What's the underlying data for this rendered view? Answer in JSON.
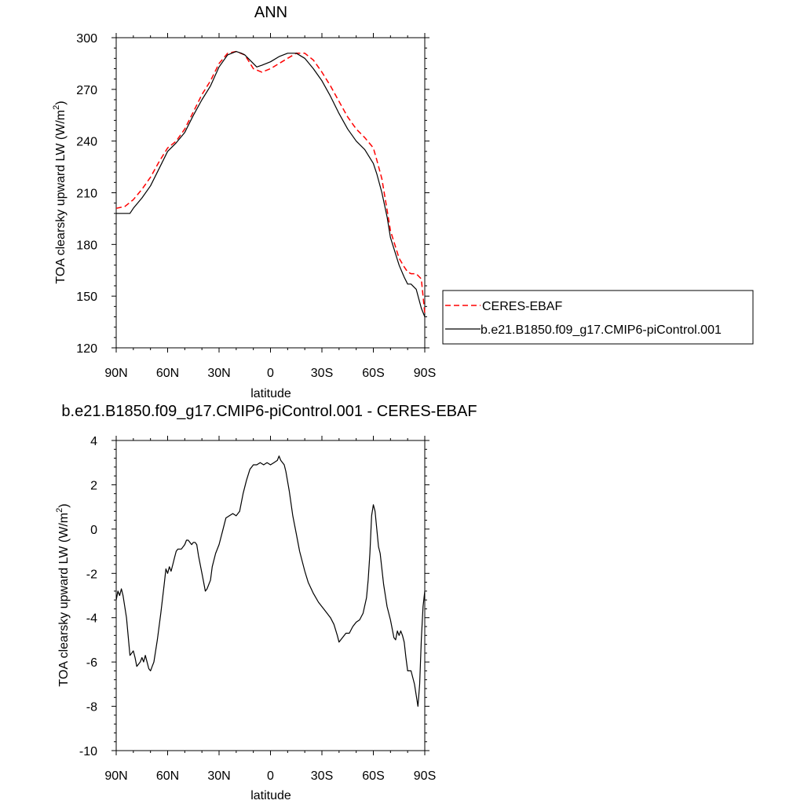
{
  "chart_data": [
    {
      "type": "line",
      "title": "ANN",
      "xlabel": "latitude",
      "ylabel": "TOA clearsky upward LW (W/m",
      "ylabel_sup": "2",
      "ylabel_close": ")",
      "xlim": [
        90,
        -90
      ],
      "ylim": [
        120,
        300
      ],
      "yticks": [
        120,
        150,
        180,
        210,
        240,
        270,
        300
      ],
      "xticks": [
        90,
        60,
        30,
        0,
        -30,
        -60,
        -90
      ],
      "xticklabels": [
        "90N",
        "60N",
        "30N",
        "0",
        "30S",
        "60S",
        "90S"
      ],
      "grid": false,
      "legend_position": "right",
      "series": [
        {
          "name": "CERES-EBAF",
          "color": "#ff0000",
          "dash": "dashed",
          "x": [
            90,
            85,
            80,
            75,
            70,
            65,
            60,
            55,
            50,
            45,
            40,
            35,
            30,
            25,
            20,
            15,
            10,
            5,
            0,
            -5,
            -10,
            -15,
            -20,
            -25,
            -30,
            -35,
            -40,
            -45,
            -50,
            -55,
            -60,
            -62,
            -65,
            -68,
            -70,
            -75,
            -78,
            -80,
            -82,
            -85,
            -88,
            -90
          ],
          "y": [
            201,
            202,
            206,
            212,
            219,
            228,
            236,
            240,
            247,
            257,
            267,
            275,
            285,
            291,
            292,
            290,
            282,
            280,
            282,
            285,
            288,
            291,
            291,
            287,
            280,
            272,
            263,
            254,
            247,
            242,
            236,
            229,
            218,
            200,
            188,
            172,
            167,
            164,
            163,
            163,
            160,
            140
          ]
        },
        {
          "name": "b.e21.B1850.f09_g17.CMIP6-piControl.001",
          "color": "#000000",
          "dash": "solid",
          "x": [
            90,
            85,
            82,
            80,
            75,
            70,
            65,
            60,
            55,
            50,
            45,
            40,
            35,
            30,
            25,
            20,
            17,
            15,
            10,
            8,
            5,
            0,
            -5,
            -10,
            -15,
            -20,
            -25,
            -30,
            -35,
            -40,
            -45,
            -50,
            -55,
            -60,
            -62,
            -65,
            -68,
            -70,
            -75,
            -78,
            -80,
            -82,
            -85,
            -88,
            -90
          ],
          "y": [
            198,
            198,
            198,
            201,
            207,
            214,
            224,
            234,
            239,
            245,
            255,
            264,
            272,
            283,
            290,
            292,
            291,
            290,
            285,
            283,
            284,
            286,
            289,
            291,
            291,
            288,
            282,
            275,
            266,
            256,
            247,
            240,
            235,
            227,
            221,
            210,
            196,
            184,
            168,
            161,
            157,
            157,
            154,
            143,
            138
          ]
        }
      ]
    },
    {
      "type": "line",
      "title": "b.e21.B1850.f09_g17.CMIP6-piControl.001 - CERES-EBAF",
      "xlabel": "latitude",
      "ylabel": "TOA clearsky upward LW (W/m",
      "ylabel_sup": "2",
      "ylabel_close": ")",
      "xlim": [
        90,
        -90
      ],
      "ylim": [
        -10,
        4
      ],
      "yticks": [
        -10,
        -8,
        -6,
        -4,
        -2,
        0,
        2,
        4
      ],
      "xticks": [
        90,
        60,
        30,
        0,
        -30,
        -60,
        -90
      ],
      "xticklabels": [
        "90N",
        "60N",
        "30N",
        "0",
        "30S",
        "60S",
        "90S"
      ],
      "grid": false,
      "series": [
        {
          "color": "#000000",
          "dash": "solid",
          "x": [
            90,
            89,
            88,
            87,
            86,
            84,
            82,
            81,
            80,
            79,
            78,
            76,
            75,
            74,
            73,
            71,
            70,
            69,
            68,
            66,
            64,
            62,
            61,
            60,
            59,
            58,
            57,
            56,
            55,
            54,
            52,
            50,
            49,
            48,
            46,
            45,
            44,
            43,
            42,
            41,
            40,
            39,
            38,
            37,
            35,
            34,
            32,
            30,
            28,
            26,
            24,
            22,
            20,
            18,
            16,
            14,
            12,
            10,
            8,
            6,
            4,
            2,
            0,
            -2,
            -4,
            -5,
            -6,
            -8,
            -9,
            -11,
            -13,
            -15,
            -17,
            -20,
            -22,
            -25,
            -28,
            -30,
            -32,
            -35,
            -37,
            -39,
            -40,
            -42,
            -44,
            -46,
            -48,
            -50,
            -52,
            -54,
            -56,
            -57,
            -58,
            -59,
            -60,
            -61,
            -62,
            -63,
            -64,
            -66,
            -68,
            -70,
            -72,
            -73,
            -74,
            -75,
            -76,
            -77,
            -78,
            -79,
            -80,
            -82,
            -83,
            -84,
            -85,
            -86,
            -87,
            -88,
            -89,
            -90
          ],
          "y": [
            -3.2,
            -2.8,
            -3.0,
            -2.7,
            -3.0,
            -4.0,
            -5.7,
            -5.6,
            -5.5,
            -5.8,
            -6.2,
            -6.0,
            -5.8,
            -6.0,
            -5.7,
            -6.3,
            -6.4,
            -6.2,
            -6.0,
            -5.0,
            -3.8,
            -2.5,
            -1.8,
            -2.0,
            -1.7,
            -1.9,
            -1.6,
            -1.3,
            -1.0,
            -0.9,
            -0.9,
            -0.7,
            -0.5,
            -0.5,
            -0.7,
            -0.6,
            -0.6,
            -0.7,
            -1.2,
            -1.6,
            -2.0,
            -2.4,
            -2.8,
            -2.7,
            -2.3,
            -1.7,
            -1.1,
            -0.7,
            -0.1,
            0.5,
            0.6,
            0.7,
            0.6,
            0.8,
            1.6,
            2.2,
            2.7,
            2.9,
            2.9,
            3.0,
            2.9,
            3.0,
            2.9,
            3.0,
            3.1,
            3.3,
            3.1,
            2.9,
            2.6,
            1.7,
            0.6,
            -0.2,
            -1.0,
            -1.9,
            -2.4,
            -2.9,
            -3.3,
            -3.5,
            -3.7,
            -4.0,
            -4.3,
            -4.8,
            -5.1,
            -4.9,
            -4.7,
            -4.7,
            -4.4,
            -4.2,
            -4.1,
            -3.8,
            -3.1,
            -2.3,
            -1.1,
            0.6,
            1.1,
            0.8,
            0.0,
            -0.8,
            -1.1,
            -2.5,
            -3.5,
            -4.1,
            -4.9,
            -5.0,
            -4.6,
            -4.8,
            -4.6,
            -4.8,
            -5.1,
            -5.8,
            -6.4,
            -6.4,
            -6.7,
            -7.0,
            -7.5,
            -8.0,
            -7.0,
            -5.0,
            -3.5,
            -2.8
          ]
        }
      ]
    }
  ],
  "legend": {
    "entries": [
      "CERES-EBAF",
      "b.e21.B1850.f09_g17.CMIP6-piControl.001"
    ]
  }
}
